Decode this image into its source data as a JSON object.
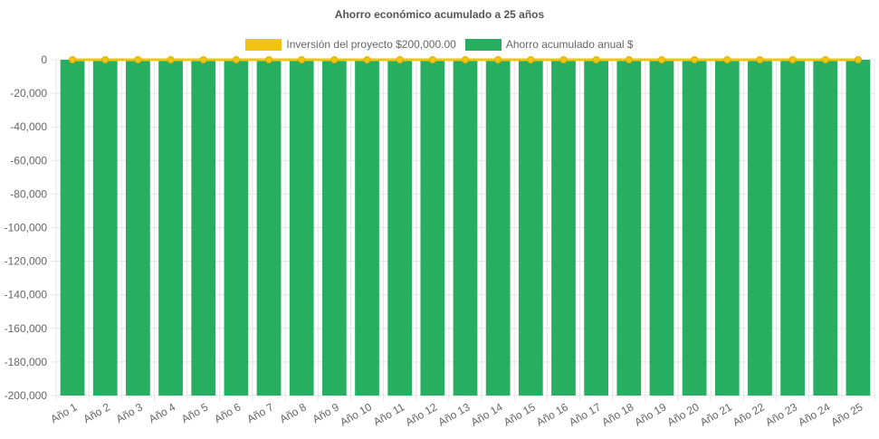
{
  "chart_data": {
    "type": "bar",
    "title": "Ahorro económico acumulado a 25 años",
    "categories": [
      "Año 1",
      "Año 2",
      "Año 3",
      "Año 4",
      "Año 5",
      "Año 6",
      "Año 7",
      "Año 8",
      "Año 9",
      "Año 10",
      "Año 11",
      "Año 12",
      "Año 13",
      "Año 14",
      "Año 15",
      "Año 16",
      "Año 17",
      "Año 18",
      "Año 19",
      "Año 20",
      "Año 21",
      "Año 22",
      "Año 23",
      "Año 24",
      "Año 25"
    ],
    "series": [
      {
        "name": "Inversión del proyecto $200,000.00",
        "kind": "line",
        "color": "#f1c40f",
        "values": [
          0,
          0,
          0,
          0,
          0,
          0,
          0,
          0,
          0,
          0,
          0,
          0,
          0,
          0,
          0,
          0,
          0,
          0,
          0,
          0,
          0,
          0,
          0,
          0,
          0
        ]
      },
      {
        "name": "Ahorro acumulado anual $",
        "kind": "bar",
        "color": "#27ae60",
        "values": [
          -200000,
          -200000,
          -200000,
          -200000,
          -200000,
          -200000,
          -200000,
          -200000,
          -200000,
          -200000,
          -200000,
          -200000,
          -200000,
          -200000,
          -200000,
          -200000,
          -200000,
          -200000,
          -200000,
          -200000,
          -200000,
          -200000,
          -200000,
          -200000,
          -200000
        ]
      }
    ],
    "yticks": [
      "0",
      "-20,000",
      "-40,000",
      "-60,000",
      "-80,000",
      "-100,000",
      "-120,000",
      "-140,000",
      "-160,000",
      "-180,000",
      "-200,000"
    ],
    "ylim": [
      -200000,
      0
    ],
    "xlabel": "",
    "ylabel": "",
    "grid": true,
    "legend_position": "top"
  }
}
